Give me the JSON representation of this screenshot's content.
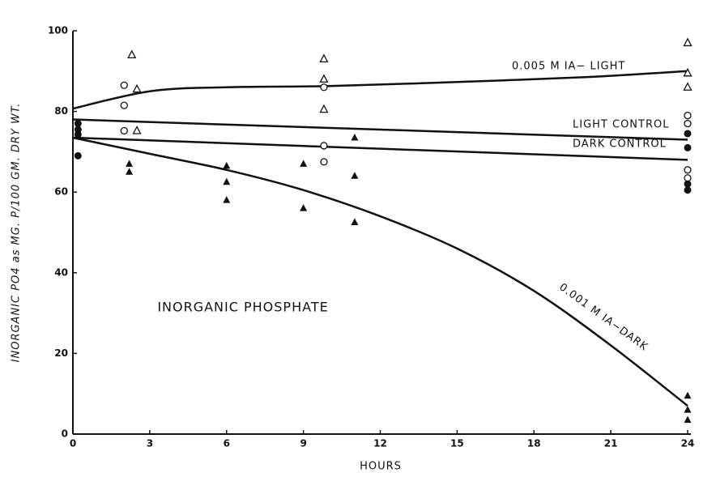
{
  "chart_data": {
    "type": "scatter",
    "x_label": "HOURS",
    "y_label": "INORGANIC PO4 as MG. P/100 GM. DRY WT.",
    "xlim": [
      0,
      24
    ],
    "xticks": [
      0,
      3,
      6,
      9,
      12,
      15,
      18,
      21,
      24
    ],
    "ylim": [
      0,
      100
    ],
    "yticks": [
      0,
      20,
      40,
      60,
      80,
      100
    ],
    "annotations": [
      "0.005 M IA− LIGHT",
      "LIGHT CONTROL",
      "DARK CONTROL",
      "0.001 M IA−DARK",
      "INORGANIC PHOSPHATE"
    ],
    "series": [
      {
        "marker": "open-triangle",
        "color": "#111111",
        "x": [
          2.3,
          2.5,
          2.5,
          9.8,
          9.8,
          9.8,
          24,
          24,
          24
        ],
        "values": [
          94,
          85.5,
          75.2,
          93,
          88,
          80.5,
          97,
          89.5,
          86
        ]
      },
      {
        "marker": "open-circle",
        "color": "#111111",
        "x": [
          2,
          2,
          2,
          9.8,
          9.8,
          9.8,
          24,
          24,
          24,
          24
        ],
        "values": [
          86.5,
          81.5,
          75.2,
          86,
          71.5,
          67.5,
          79,
          77,
          65.5,
          63.5
        ]
      },
      {
        "marker": "filled-circle",
        "color": "#111111",
        "x": [
          0.2,
          0.2,
          0.2,
          0.2,
          24,
          24,
          24,
          24
        ],
        "values": [
          77,
          75.5,
          74.3,
          69,
          74.5,
          71,
          62,
          60.5
        ]
      },
      {
        "marker": "filled-triangle",
        "color": "#111111",
        "x": [
          2.2,
          2.2,
          6,
          6,
          6,
          9,
          9,
          11,
          11,
          11,
          24,
          24,
          24
        ],
        "values": [
          67,
          65,
          66.5,
          62.5,
          58,
          67,
          56,
          73.5,
          64,
          52.5,
          9.5,
          6,
          3.5
        ]
      }
    ],
    "curves": [
      {
        "color": "#111111",
        "x": [
          0,
          3,
          6,
          10,
          15,
          20,
          24
        ],
        "values": [
          80.7,
          85,
          86,
          86.3,
          87.3,
          88.5,
          90
        ]
      },
      {
        "color": "#111111",
        "x": [
          0,
          24
        ],
        "values": [
          78,
          73
        ]
      },
      {
        "color": "#111111",
        "x": [
          0,
          24
        ],
        "values": [
          73.5,
          68
        ]
      },
      {
        "color": "#111111",
        "x": [
          0,
          3,
          6,
          9,
          12,
          15,
          18,
          21,
          24
        ],
        "values": [
          73.5,
          69.5,
          65.5,
          60.5,
          54,
          46,
          35.5,
          22,
          7
        ]
      }
    ]
  }
}
